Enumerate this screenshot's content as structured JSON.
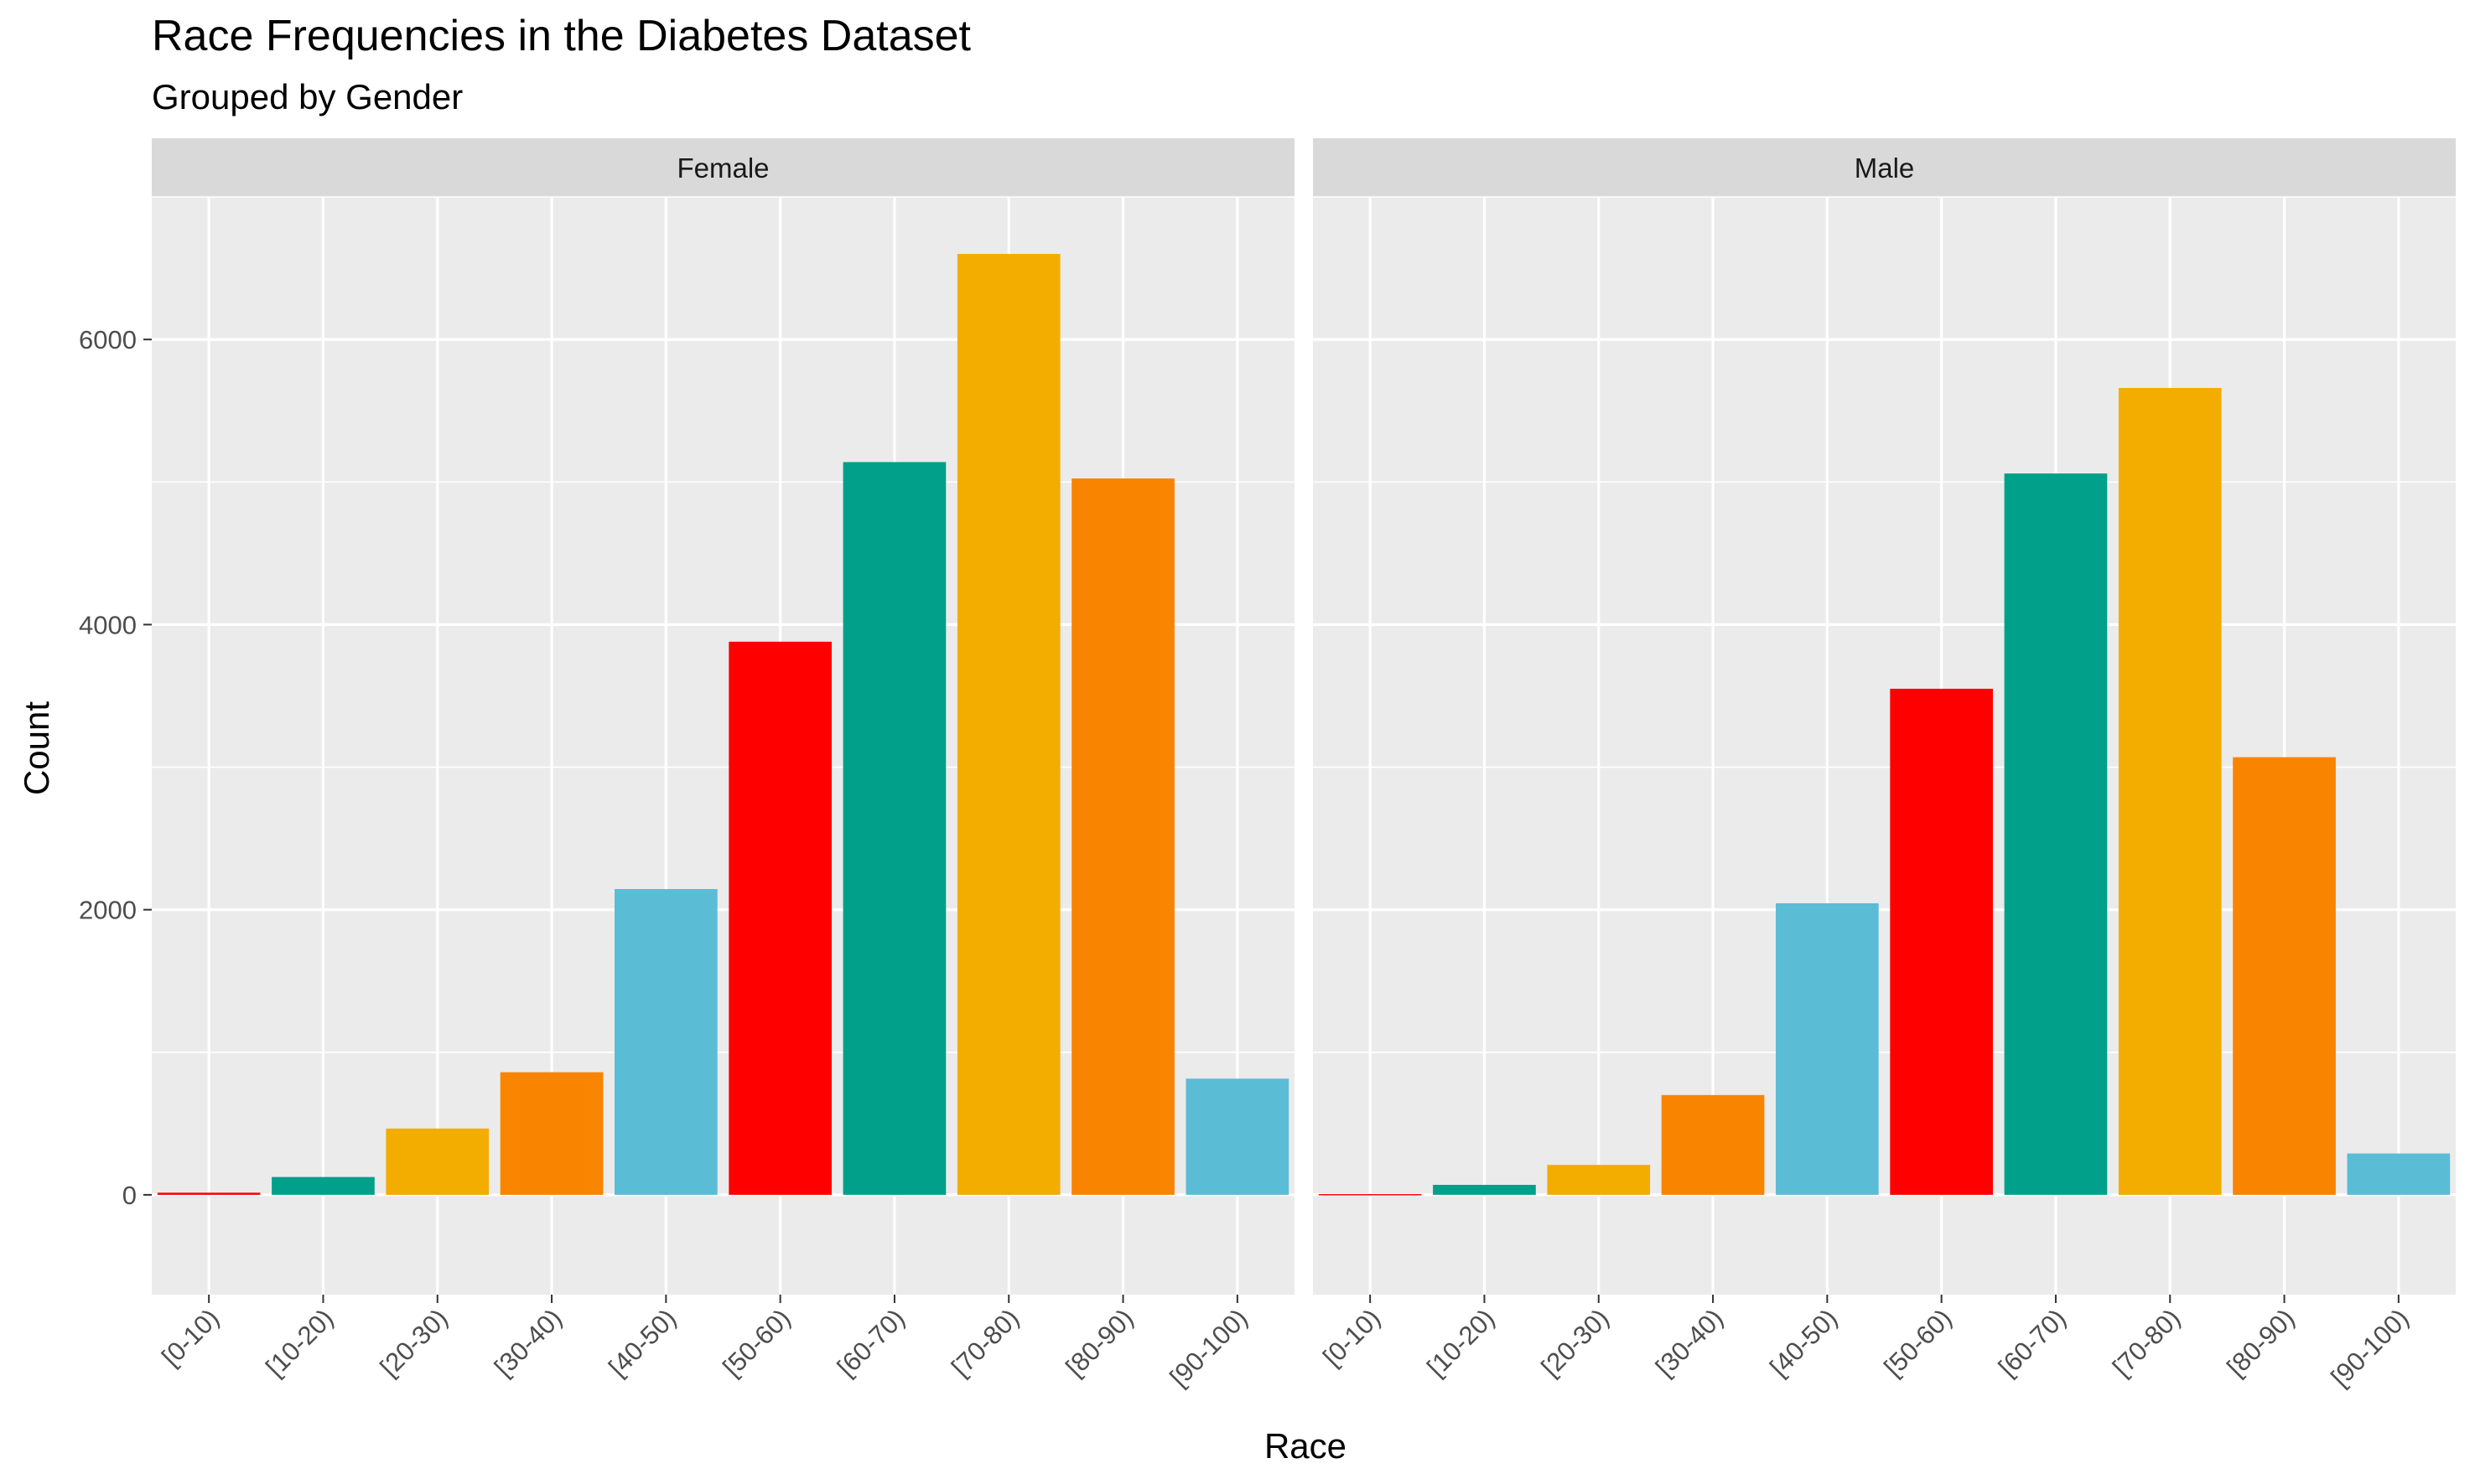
{
  "chart_data": {
    "type": "bar",
    "title": "Race Frequencies in the Diabetes Dataset",
    "subtitle": "Grouped by Gender",
    "xlabel": "Race",
    "ylabel": "Count",
    "ylim": [
      -700,
      7000
    ],
    "yticks": [
      0,
      2000,
      4000,
      6000
    ],
    "categories": [
      "[0-10)",
      "[10-20)",
      "[20-30)",
      "[30-40)",
      "[40-50)",
      "[50-60)",
      "[60-70)",
      "[70-80)",
      "[80-90)",
      "[90-100)"
    ],
    "bar_colors": [
      "#FF0000",
      "#00A08A",
      "#F2AD00",
      "#F98400",
      "#5BBCD6",
      "#FF0000",
      "#00A08A",
      "#F2AD00",
      "#F98400",
      "#5BBCD6"
    ],
    "panel_background": "#EBEBEB",
    "strip_background": "#D9D9D9",
    "grid": true,
    "legend": "none",
    "facets": [
      {
        "name": "Female",
        "values": [
          15,
          125,
          465,
          860,
          2145,
          3880,
          5140,
          6600,
          5025,
          815
        ]
      },
      {
        "name": "Male",
        "values": [
          5,
          70,
          210,
          700,
          2045,
          3550,
          5060,
          5660,
          3070,
          290
        ]
      }
    ]
  }
}
